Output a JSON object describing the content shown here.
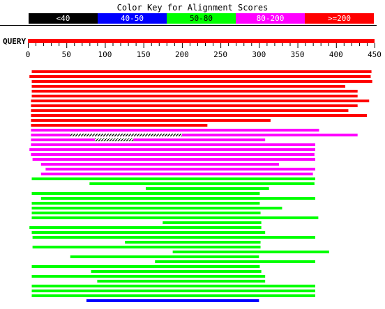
{
  "title": "Color Key for Alignment Scores",
  "legend": [
    {
      "label": "<40",
      "color": "#000000",
      "text_color": "#ffffff"
    },
    {
      "label": "40-50",
      "color": "#0000ff",
      "text_color": "#ffffff"
    },
    {
      "label": "50-80",
      "color": "#00ff00",
      "text_color": "#000000"
    },
    {
      "label": "80-200",
      "color": "#ff00ff",
      "text_color": "#ffffff"
    },
    {
      "label": ">=200",
      "color": "#ff0000",
      "text_color": "#ffffff"
    }
  ],
  "query": {
    "label": "QUERY",
    "start": 0,
    "end": 450,
    "color": "#ff0000"
  },
  "axis": {
    "min": 0,
    "max": 450,
    "major_step": 50,
    "minor_step": 10,
    "ticks": [
      "0",
      "50",
      "100",
      "150",
      "200",
      "250",
      "300",
      "350",
      "400",
      "450"
    ]
  },
  "chart_data": {
    "type": "bar",
    "title": "Color Key for Alignment Scores",
    "xlim": [
      0,
      450
    ],
    "categories": [
      "<40",
      "40-50",
      "50-80",
      "80-200",
      ">=200"
    ],
    "hits": [
      {
        "start": 5,
        "end": 446,
        "score": ">=200"
      },
      {
        "start": 2,
        "end": 445,
        "score": ">=200"
      },
      {
        "start": 5,
        "end": 447,
        "score": ">=200"
      },
      {
        "start": 5,
        "end": 412,
        "score": ">=200"
      },
      {
        "start": 5,
        "end": 428,
        "score": ">=200"
      },
      {
        "start": 5,
        "end": 428,
        "score": ">=200"
      },
      {
        "start": 4,
        "end": 443,
        "score": ">=200"
      },
      {
        "start": 4,
        "end": 428,
        "score": ">=200"
      },
      {
        "start": 4,
        "end": 416,
        "score": ">=200"
      },
      {
        "start": 4,
        "end": 440,
        "score": ">=200"
      },
      {
        "start": 4,
        "end": 315,
        "score": ">=200"
      },
      {
        "start": 4,
        "end": 233,
        "score": ">=200"
      },
      {
        "start": 4,
        "end": 378,
        "score": "80-200"
      },
      {
        "start": 4,
        "end": 428,
        "score": "80-200",
        "gaps": [
          [
            55,
            200
          ]
        ]
      },
      {
        "start": 4,
        "end": 308,
        "score": "80-200",
        "gaps": [
          [
            87,
            137
          ]
        ]
      },
      {
        "start": 4,
        "end": 373,
        "score": "80-200"
      },
      {
        "start": 2,
        "end": 373,
        "score": "80-200"
      },
      {
        "start": 4,
        "end": 372,
        "score": "80-200"
      },
      {
        "start": 6,
        "end": 373,
        "score": "80-200"
      },
      {
        "start": 17,
        "end": 326,
        "score": "80-200"
      },
      {
        "start": 23,
        "end": 373,
        "score": "80-200"
      },
      {
        "start": 17,
        "end": 370,
        "score": "80-200"
      },
      {
        "start": 5,
        "end": 373,
        "score": "50-80"
      },
      {
        "start": 80,
        "end": 372,
        "score": "50-80"
      },
      {
        "start": 153,
        "end": 313,
        "score": "50-80"
      },
      {
        "start": 5,
        "end": 301,
        "score": "50-80"
      },
      {
        "start": 17,
        "end": 373,
        "score": "50-80"
      },
      {
        "start": 5,
        "end": 301,
        "score": "50-80"
      },
      {
        "start": 5,
        "end": 330,
        "score": "50-80"
      },
      {
        "start": 5,
        "end": 302,
        "score": "50-80"
      },
      {
        "start": 5,
        "end": 377,
        "score": "50-80"
      },
      {
        "start": 175,
        "end": 303,
        "score": "50-80"
      },
      {
        "start": 2,
        "end": 303,
        "score": "50-80"
      },
      {
        "start": 5,
        "end": 308,
        "score": "50-80"
      },
      {
        "start": 6,
        "end": 373,
        "score": "50-80"
      },
      {
        "start": 126,
        "end": 302,
        "score": "50-80"
      },
      {
        "start": 6,
        "end": 302,
        "score": "50-80"
      },
      {
        "start": 188,
        "end": 391,
        "score": "50-80"
      },
      {
        "start": 55,
        "end": 300,
        "score": "50-80"
      },
      {
        "start": 165,
        "end": 373,
        "score": "50-80"
      },
      {
        "start": 5,
        "end": 301,
        "score": "50-80"
      },
      {
        "start": 82,
        "end": 303,
        "score": "50-80"
      },
      {
        "start": 5,
        "end": 308,
        "score": "50-80"
      },
      {
        "start": 90,
        "end": 308,
        "score": "50-80"
      },
      {
        "start": 5,
        "end": 373,
        "score": "50-80"
      },
      {
        "start": 5,
        "end": 373,
        "score": "50-80"
      },
      {
        "start": 5,
        "end": 373,
        "score": "50-80"
      },
      {
        "start": 76,
        "end": 300,
        "score": "40-50"
      }
    ]
  }
}
